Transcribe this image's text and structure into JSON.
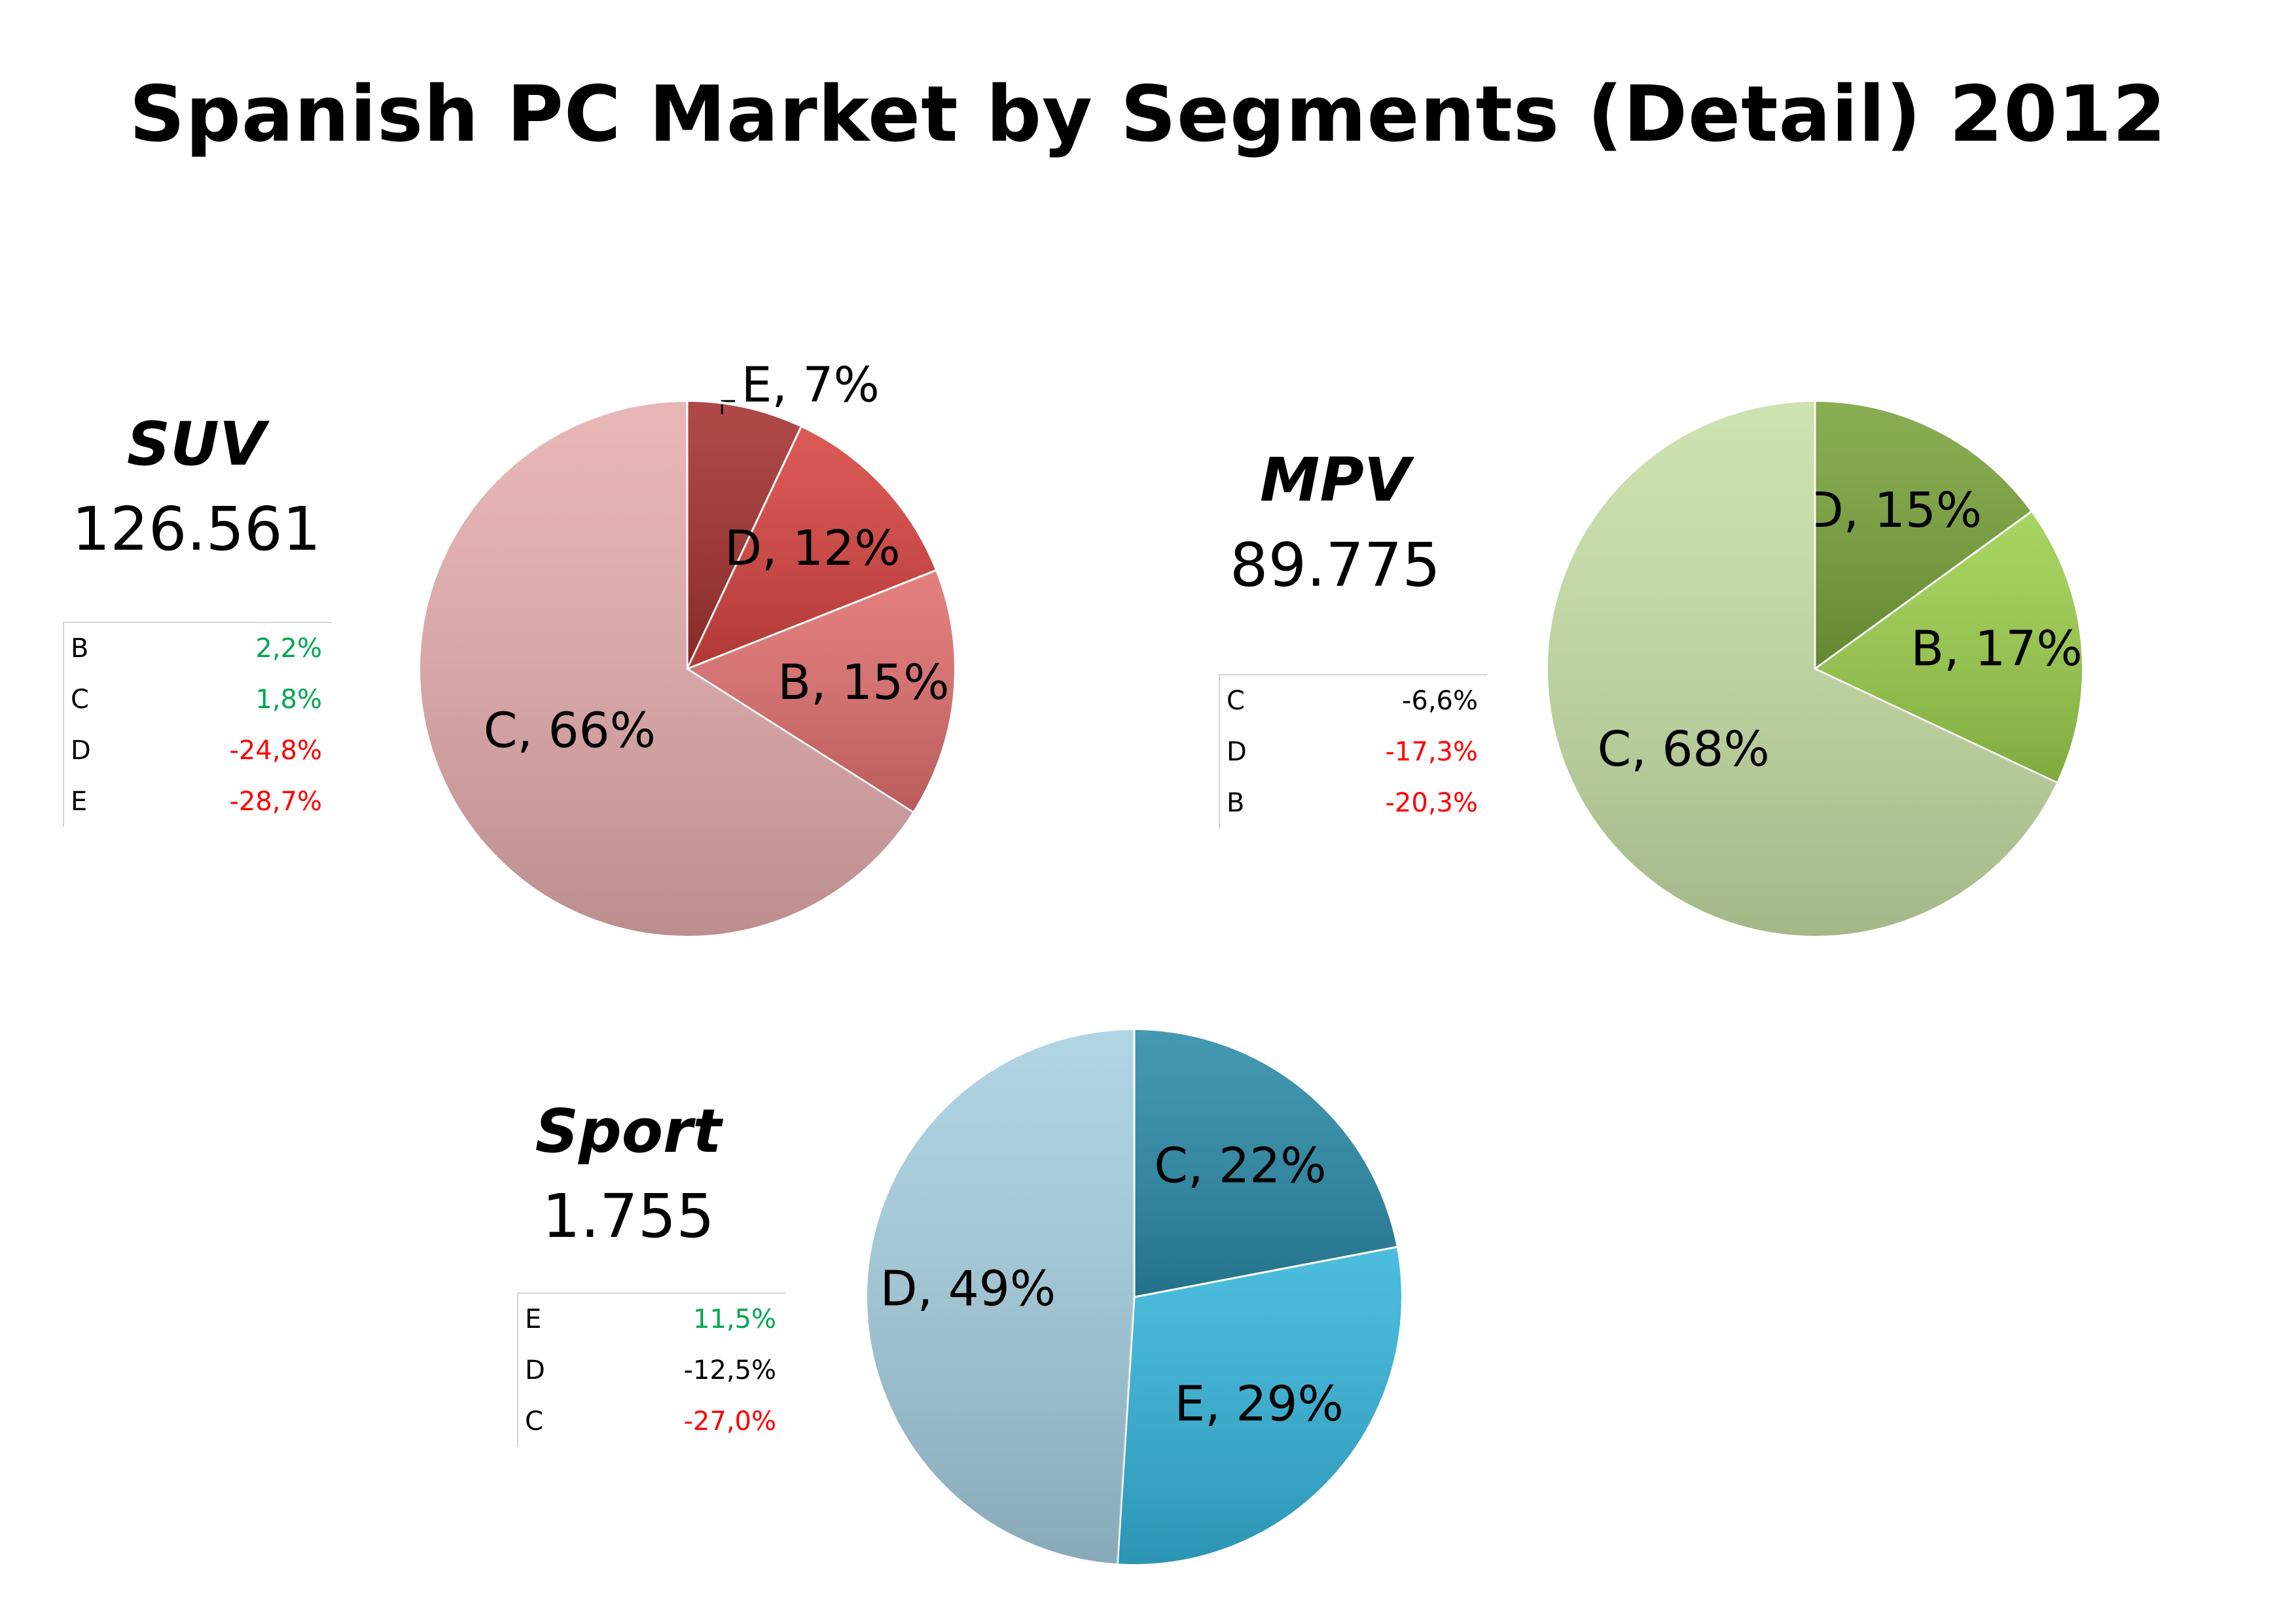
{
  "title": "Spanish PC Market by Segments (Detail) 2012",
  "chart_data": [
    {
      "type": "pie",
      "title": "SUV",
      "total": "126.561",
      "slices": [
        {
          "label": "E",
          "value": 7,
          "text": "E, 7%",
          "color": "#a3302f"
        },
        {
          "label": "D",
          "value": 12,
          "text": "D, 12%",
          "color": "#d6433f"
        },
        {
          "label": "B",
          "value": 15,
          "text": "B, 15%",
          "color": "#e06f6e"
        },
        {
          "label": "C",
          "value": 66,
          "text": "C, 66%",
          "color": "#e6adad"
        }
      ],
      "growth": [
        {
          "segment": "B",
          "value": "2,2%",
          "color": "#00a651"
        },
        {
          "segment": "C",
          "value": "1,8%",
          "color": "#00a651"
        },
        {
          "segment": "D",
          "value": "-24,8%",
          "color": "#ff0000"
        },
        {
          "segment": "E",
          "value": "-28,7%",
          "color": "#ff0000"
        }
      ]
    },
    {
      "type": "pie",
      "title": "MPV",
      "total": "89.775",
      "slices": [
        {
          "label": "D",
          "value": 15,
          "text": "D, 15%",
          "color": "#78a33a"
        },
        {
          "label": "B",
          "value": 17,
          "text": "B, 17%",
          "color": "#9ccf4c"
        },
        {
          "label": "C",
          "value": 68,
          "text": "C, 68%",
          "color": "#c8dfa6"
        }
      ],
      "growth": [
        {
          "segment": "C",
          "value": "-6,6%",
          "color": "#000000"
        },
        {
          "segment": "D",
          "value": "-17,3%",
          "color": "#ff0000"
        },
        {
          "segment": "B",
          "value": "-20,3%",
          "color": "#ff0000"
        }
      ]
    },
    {
      "type": "pie",
      "title": "Sport",
      "total": "1.755",
      "slices": [
        {
          "label": "C",
          "value": 22,
          "text": "C, 22%",
          "color": "#2a8aa8"
        },
        {
          "label": "E",
          "value": 29,
          "text": "E, 29%",
          "color": "#34b4da"
        },
        {
          "label": "D",
          "value": 49,
          "text": "D, 49%",
          "color": "#a6cfe0"
        }
      ],
      "growth": [
        {
          "segment": "E",
          "value": "11,5%",
          "color": "#00a651"
        },
        {
          "segment": "D",
          "value": "-12,5%",
          "color": "#000000"
        },
        {
          "segment": "C",
          "value": "-27,0%",
          "color": "#ff0000"
        }
      ]
    }
  ]
}
